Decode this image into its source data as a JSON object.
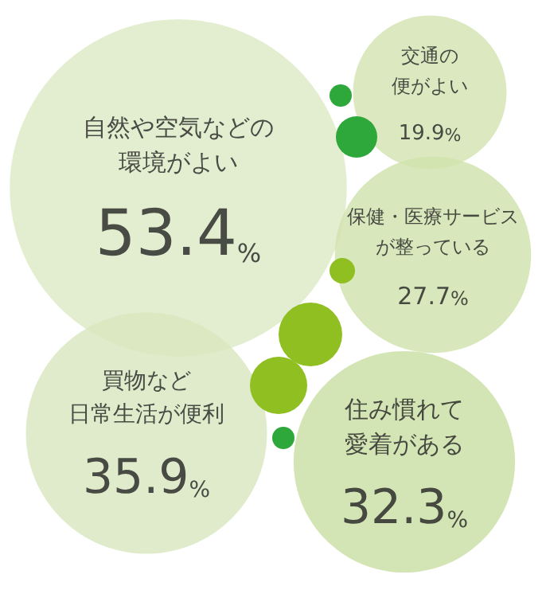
{
  "chart_data": {
    "type": "other",
    "categories": [
      "自然や空気などの環境がよい",
      "交通の便がよい",
      "保健・医療サービスが整っている",
      "買物など日常生活が便利",
      "住み慣れて愛着がある"
    ],
    "values": [
      53.4,
      19.9,
      27.7,
      35.9,
      32.3
    ],
    "value_labels": [
      "53.4%",
      "19.9%",
      "27.7%",
      "35.9%",
      "32.3%"
    ],
    "colors": [
      "#dce8c3",
      "#d3e4b0",
      "#cfe2ab",
      "#d8e6be",
      "#c9dea2"
    ]
  }
}
